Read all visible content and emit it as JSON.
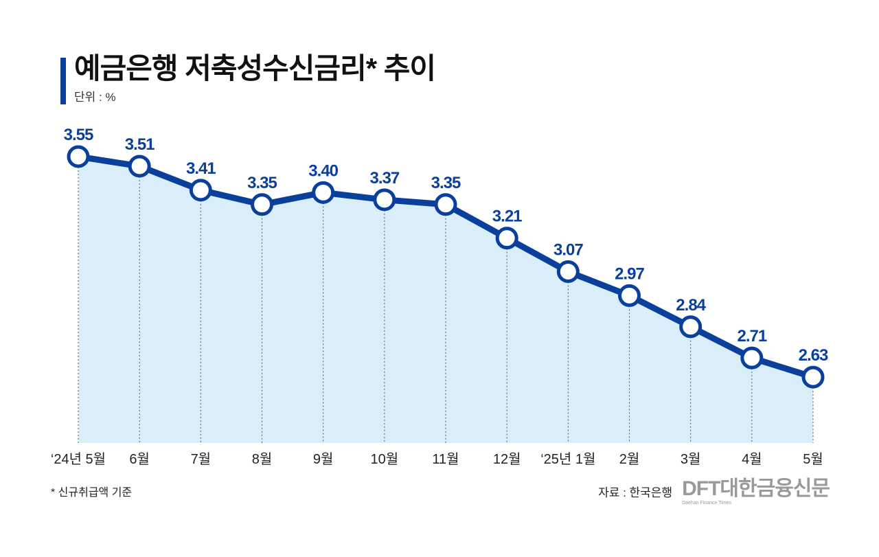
{
  "title": "예금은행 저축성수신금리* 추이",
  "unit": "단위 : %",
  "footnote": "* 신규취급액 기준",
  "source": "자료 : 한국은행",
  "logo": {
    "text": "DFT대한금융신문",
    "subtitle": "Daehan Finance Times"
  },
  "colors": {
    "line": "#0b3f9c",
    "fill": "#d9eef9",
    "accent_bar": "#0b3f9c"
  },
  "chart_data": {
    "type": "area",
    "categories": [
      "‘24년 5월",
      "6월",
      "7월",
      "8월",
      "9월",
      "10월",
      "11월",
      "12월",
      "‘25년 1월",
      "2월",
      "3월",
      "4월",
      "5월"
    ],
    "values": [
      3.55,
      3.51,
      3.41,
      3.35,
      3.4,
      3.37,
      3.35,
      3.21,
      3.07,
      2.97,
      2.84,
      2.71,
      2.63
    ],
    "value_labels": [
      "3.55",
      "3.51",
      "3.41",
      "3.35",
      "3.40",
      "3.37",
      "3.35",
      "3.21",
      "3.07",
      "2.97",
      "2.84",
      "2.71",
      "2.63"
    ],
    "title": "예금은행 저축성수신금리* 추이",
    "ylabel": "단위 : %",
    "grid": false,
    "markers": "hollow-circle",
    "drop_lines": "dotted"
  }
}
